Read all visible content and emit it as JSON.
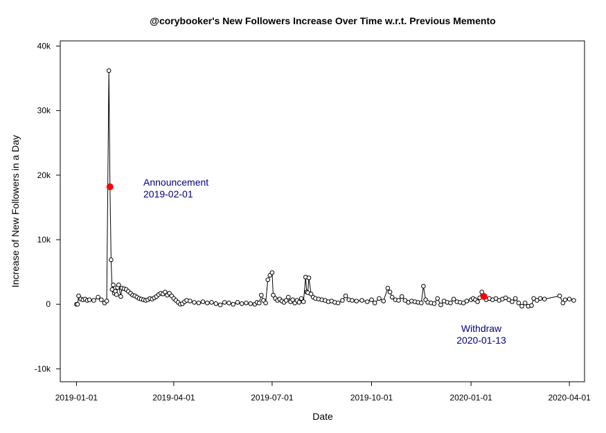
{
  "chart_data": {
    "type": "scatter",
    "title": "@corybooker's New Followers Increase Over Time w.r.t. Previous Memento",
    "xlabel": "Date",
    "ylabel": "Increase of New Followers in a Day",
    "x_range": [
      "2018-12-17",
      "2020-04-15"
    ],
    "ylim": [
      -12000,
      40800
    ],
    "x_ticks": [
      "2019-01-01",
      "2019-04-01",
      "2019-07-01",
      "2019-10-01",
      "2020-01-01",
      "2020-04-01"
    ],
    "y_ticks": [
      -10000,
      0,
      10000,
      20000,
      30000,
      40000
    ],
    "y_tick_labels": [
      "-10k",
      "0",
      "10k",
      "20k",
      "30k",
      "40k"
    ],
    "grid": false,
    "line_color": "#000000",
    "marker_style": "open-circle",
    "highlight_color": "#ff0000",
    "annotation_color": "#000080",
    "series": [
      {
        "points": [
          [
            "2019-01-01",
            0
          ],
          [
            "2019-01-02",
            0
          ],
          [
            "2019-01-03",
            1300
          ],
          [
            "2019-01-05",
            800
          ],
          [
            "2019-01-07",
            700
          ],
          [
            "2019-01-09",
            800
          ],
          [
            "2019-01-11",
            600
          ],
          [
            "2019-01-13",
            700
          ],
          [
            "2019-01-17",
            600
          ],
          [
            "2019-01-21",
            1100
          ],
          [
            "2019-01-24",
            700
          ],
          [
            "2019-01-27",
            200
          ],
          [
            "2019-01-29",
            500
          ],
          [
            "2019-01-31",
            36200
          ],
          [
            "2019-02-01",
            18200
          ],
          [
            "2019-02-02",
            6900
          ],
          [
            "2019-02-03",
            2300
          ],
          [
            "2019-02-04",
            3000
          ],
          [
            "2019-02-05",
            1700
          ],
          [
            "2019-02-06",
            2000
          ],
          [
            "2019-02-07",
            1500
          ],
          [
            "2019-02-08",
            2600
          ],
          [
            "2019-02-09",
            3000
          ],
          [
            "2019-02-11",
            1200
          ],
          [
            "2019-02-12",
            2500
          ],
          [
            "2019-02-14",
            2400
          ],
          [
            "2019-02-16",
            2300
          ],
          [
            "2019-02-18",
            2000
          ],
          [
            "2019-02-20",
            1700
          ],
          [
            "2019-02-22",
            1400
          ],
          [
            "2019-02-24",
            1300
          ],
          [
            "2019-02-26",
            1100
          ],
          [
            "2019-02-28",
            900
          ],
          [
            "2019-03-02",
            800
          ],
          [
            "2019-03-04",
            700
          ],
          [
            "2019-03-06",
            600
          ],
          [
            "2019-03-08",
            700
          ],
          [
            "2019-03-10",
            900
          ],
          [
            "2019-03-12",
            800
          ],
          [
            "2019-03-14",
            1000
          ],
          [
            "2019-03-16",
            1200
          ],
          [
            "2019-03-18",
            1500
          ],
          [
            "2019-03-20",
            1700
          ],
          [
            "2019-03-22",
            1600
          ],
          [
            "2019-03-24",
            1900
          ],
          [
            "2019-03-26",
            1400
          ],
          [
            "2019-03-28",
            1700
          ],
          [
            "2019-03-30",
            1300
          ],
          [
            "2019-04-01",
            900
          ],
          [
            "2019-04-03",
            600
          ],
          [
            "2019-04-05",
            300
          ],
          [
            "2019-04-07",
            0
          ],
          [
            "2019-04-09",
            100
          ],
          [
            "2019-04-11",
            400
          ],
          [
            "2019-04-13",
            600
          ],
          [
            "2019-04-16",
            500
          ],
          [
            "2019-04-20",
            300
          ],
          [
            "2019-04-24",
            200
          ],
          [
            "2019-04-28",
            400
          ],
          [
            "2019-05-02",
            200
          ],
          [
            "2019-05-06",
            300
          ],
          [
            "2019-05-10",
            100
          ],
          [
            "2019-05-14",
            -100
          ],
          [
            "2019-05-18",
            300
          ],
          [
            "2019-05-22",
            200
          ],
          [
            "2019-05-26",
            0
          ],
          [
            "2019-05-30",
            300
          ],
          [
            "2019-06-03",
            100
          ],
          [
            "2019-06-07",
            200
          ],
          [
            "2019-06-11",
            100
          ],
          [
            "2019-06-15",
            0
          ],
          [
            "2019-06-17",
            300
          ],
          [
            "2019-06-19",
            200
          ],
          [
            "2019-06-21",
            1400
          ],
          [
            "2019-06-23",
            600
          ],
          [
            "2019-06-25",
            200
          ],
          [
            "2019-06-27",
            3800
          ],
          [
            "2019-06-29",
            4500
          ],
          [
            "2019-07-01",
            4900
          ],
          [
            "2019-07-02",
            1400
          ],
          [
            "2019-07-04",
            900
          ],
          [
            "2019-07-06",
            600
          ],
          [
            "2019-07-08",
            800
          ],
          [
            "2019-07-10",
            500
          ],
          [
            "2019-07-12",
            300
          ],
          [
            "2019-07-14",
            600
          ],
          [
            "2019-07-16",
            1100
          ],
          [
            "2019-07-18",
            400
          ],
          [
            "2019-07-20",
            700
          ],
          [
            "2019-07-22",
            200
          ],
          [
            "2019-07-24",
            600
          ],
          [
            "2019-07-26",
            300
          ],
          [
            "2019-07-28",
            900
          ],
          [
            "2019-07-30",
            400
          ],
          [
            "2019-08-01",
            4200
          ],
          [
            "2019-08-02",
            1900
          ],
          [
            "2019-08-03",
            1800
          ],
          [
            "2019-08-04",
            4100
          ],
          [
            "2019-08-06",
            1600
          ],
          [
            "2019-08-08",
            1100
          ],
          [
            "2019-08-10",
            900
          ],
          [
            "2019-08-13",
            800
          ],
          [
            "2019-08-16",
            700
          ],
          [
            "2019-08-19",
            600
          ],
          [
            "2019-08-22",
            400
          ],
          [
            "2019-08-25",
            500
          ],
          [
            "2019-08-28",
            300
          ],
          [
            "2019-08-31",
            200
          ],
          [
            "2019-09-04",
            600
          ],
          [
            "2019-09-07",
            1300
          ],
          [
            "2019-09-10",
            700
          ],
          [
            "2019-09-13",
            600
          ],
          [
            "2019-09-17",
            500
          ],
          [
            "2019-09-22",
            600
          ],
          [
            "2019-09-27",
            400
          ],
          [
            "2019-10-01",
            700
          ],
          [
            "2019-10-04",
            200
          ],
          [
            "2019-10-08",
            900
          ],
          [
            "2019-10-12",
            500
          ],
          [
            "2019-10-16",
            2500
          ],
          [
            "2019-10-18",
            1900
          ],
          [
            "2019-10-20",
            1100
          ],
          [
            "2019-10-23",
            700
          ],
          [
            "2019-10-26",
            600
          ],
          [
            "2019-10-29",
            1200
          ],
          [
            "2019-11-01",
            600
          ],
          [
            "2019-11-04",
            300
          ],
          [
            "2019-11-07",
            500
          ],
          [
            "2019-11-10",
            400
          ],
          [
            "2019-11-13",
            300
          ],
          [
            "2019-11-16",
            200
          ],
          [
            "2019-11-18",
            2800
          ],
          [
            "2019-11-20",
            700
          ],
          [
            "2019-11-22",
            300
          ],
          [
            "2019-11-25",
            200
          ],
          [
            "2019-11-28",
            100
          ],
          [
            "2019-12-01",
            900
          ],
          [
            "2019-12-04",
            -100
          ],
          [
            "2019-12-07",
            500
          ],
          [
            "2019-12-10",
            300
          ],
          [
            "2019-12-13",
            200
          ],
          [
            "2019-12-16",
            800
          ],
          [
            "2019-12-19",
            400
          ],
          [
            "2019-12-22",
            300
          ],
          [
            "2019-12-25",
            200
          ],
          [
            "2019-12-28",
            500
          ],
          [
            "2020-01-01",
            700
          ],
          [
            "2020-01-03",
            900
          ],
          [
            "2020-01-05",
            700
          ],
          [
            "2020-01-07",
            400
          ],
          [
            "2020-01-09",
            1000
          ],
          [
            "2020-01-11",
            1900
          ],
          [
            "2020-01-13",
            1200
          ],
          [
            "2020-01-15",
            700
          ],
          [
            "2020-01-18",
            900
          ],
          [
            "2020-01-21",
            700
          ],
          [
            "2020-01-24",
            900
          ],
          [
            "2020-01-27",
            600
          ],
          [
            "2020-01-30",
            800
          ],
          [
            "2020-02-02",
            1000
          ],
          [
            "2020-02-05",
            700
          ],
          [
            "2020-02-08",
            400
          ],
          [
            "2020-02-11",
            900
          ],
          [
            "2020-02-14",
            200
          ],
          [
            "2020-02-17",
            -300
          ],
          [
            "2020-02-20",
            200
          ],
          [
            "2020-02-23",
            -300
          ],
          [
            "2020-02-26",
            -200
          ],
          [
            "2020-02-28",
            900
          ],
          [
            "2020-03-02",
            600
          ],
          [
            "2020-03-05",
            900
          ],
          [
            "2020-03-09",
            800
          ],
          [
            "2020-03-23",
            1300
          ],
          [
            "2020-03-26",
            200
          ],
          [
            "2020-03-28",
            700
          ],
          [
            "2020-04-01",
            800
          ],
          [
            "2020-04-05",
            600
          ]
        ]
      }
    ],
    "highlights": [
      {
        "date": "2019-02-01",
        "value": 18200,
        "label": "Announcement",
        "date_label": "2019-02-01"
      },
      {
        "date": "2020-01-13",
        "value": 1200,
        "label": "Withdraw",
        "date_label": "2020-01-13"
      }
    ]
  }
}
